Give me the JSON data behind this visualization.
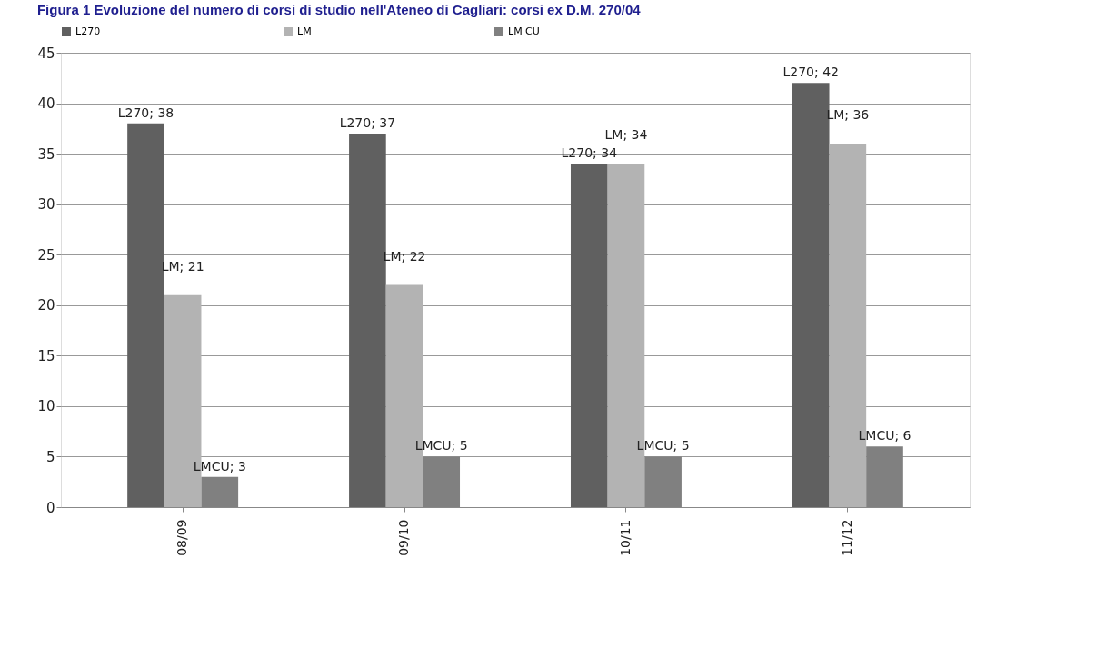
{
  "chart_data": {
    "type": "bar",
    "title": "Figura 1 Evoluzione del numero di corsi di studio nell'Ateneo di Cagliari: corsi ex D.M. 270/04",
    "categories": [
      "08/09",
      "09/10",
      "10/11",
      "11/12"
    ],
    "series": [
      {
        "name": "L270",
        "color": "#606060",
        "values": [
          38,
          37,
          34,
          42
        ],
        "value_labels": [
          "L270; 38",
          "L270; 37",
          "L270; 34",
          "L270; 42"
        ]
      },
      {
        "name": "LM",
        "color": "#b3b3b3",
        "values": [
          21,
          22,
          34,
          36
        ],
        "value_labels": [
          "LM; 21",
          "LM; 22",
          "LM; 34",
          "LM; 36"
        ]
      },
      {
        "name": "LM CU",
        "color": "#808080",
        "values": [
          3,
          5,
          5,
          6
        ],
        "value_labels": [
          "LMCU; 3",
          "LMCU; 5",
          "LMCU; 5",
          "LMCU; 6"
        ]
      }
    ],
    "ylim": [
      0,
      45
    ],
    "yticks": [
      0,
      5,
      10,
      15,
      20,
      25,
      30,
      35,
      40,
      45
    ],
    "grid": "y",
    "legend": "top"
  }
}
